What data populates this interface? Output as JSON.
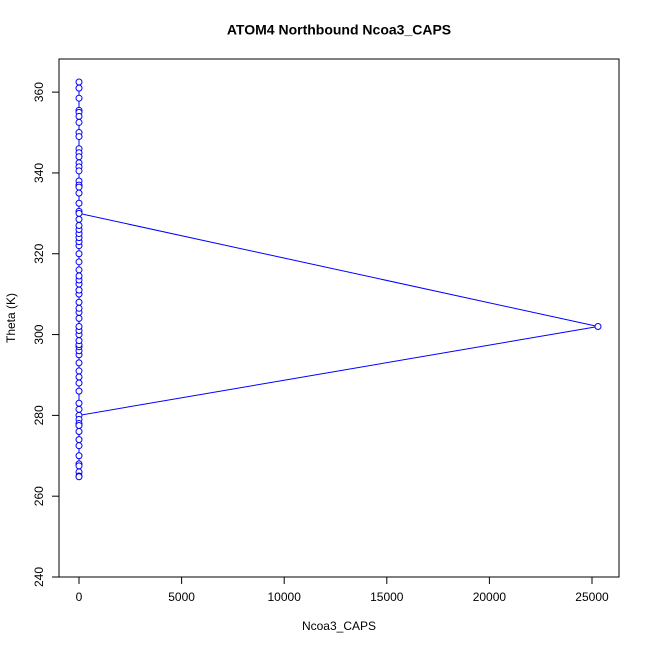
{
  "chart_data": {
    "type": "line",
    "title": "ATOM4 Northbound Ncoa3_CAPS",
    "x_label": "Ncoa3_CAPS",
    "y_label": "Theta (K)",
    "color": "#0000ff",
    "x": [
      0,
      0,
      0,
      0,
      0,
      0,
      0,
      0,
      0,
      0,
      0,
      0,
      0,
      0,
      0,
      0,
      0,
      0,
      0,
      0,
      0,
      0,
      25292,
      0,
      0,
      0,
      0,
      0,
      0,
      0,
      0,
      0,
      0,
      0,
      0,
      0,
      0,
      0,
      0,
      0,
      0,
      0,
      0,
      0,
      0,
      0,
      0,
      0,
      0,
      0,
      0,
      0,
      0,
      0,
      0,
      0,
      0,
      0,
      0,
      0,
      0,
      0,
      0,
      0,
      0,
      0,
      0,
      0,
      0,
      0
    ],
    "values": [
      362.5,
      361,
      358.5,
      355.5,
      355,
      354,
      352.5,
      350,
      349,
      346,
      345,
      344,
      342.5,
      341.5,
      340.5,
      338,
      337,
      336.5,
      335,
      332.5,
      330.5,
      330,
      302,
      280,
      279,
      278,
      277.5,
      276,
      274,
      272.5,
      270,
      268,
      267.5,
      266,
      265,
      264.8,
      281.5,
      283,
      286,
      288,
      289.5,
      291,
      293,
      295,
      296,
      297,
      297.5,
      298.5,
      300,
      301,
      302,
      304,
      305.5,
      306.5,
      308,
      310,
      311,
      312.5,
      313.5,
      314.5,
      316,
      318,
      320,
      322,
      323,
      324,
      325,
      326,
      327,
      328.5
    ],
    "xlim": [
      -975,
      26316
    ],
    "ylim": [
      240,
      368.2
    ],
    "xticks": [
      0,
      5000,
      10000,
      15000,
      20000,
      25000
    ],
    "yticks": [
      240,
      260,
      280,
      300,
      320,
      340,
      360
    ]
  }
}
